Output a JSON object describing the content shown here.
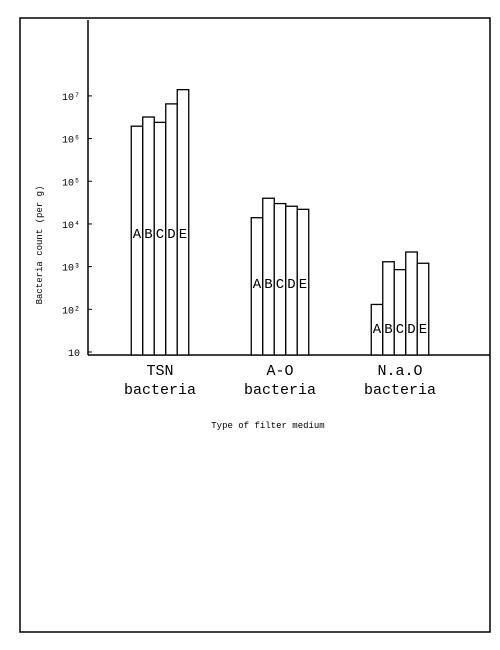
{
  "chart_data": {
    "type": "bar",
    "y_label": "Bacteria count (per g)",
    "x_label": "Type of filter medium",
    "categories": [
      "TSN bacteria",
      "A-O bacteria",
      "N.a.O bacteria"
    ],
    "series": [
      {
        "name": "A",
        "color": "#ffffff",
        "values": [
          1950000,
          14000,
          130
        ]
      },
      {
        "name": "B",
        "color": "#ffffff",
        "values": [
          3200000,
          40000,
          1300
        ]
      },
      {
        "name": "C",
        "color": "#ffffff",
        "values": [
          2400000,
          30000,
          850
        ]
      },
      {
        "name": "D",
        "color": "#ffffff",
        "values": [
          6500000,
          26000,
          2200
        ]
      },
      {
        "name": "E",
        "color": "#ffffff",
        "values": [
          14000000,
          22000,
          1200
        ]
      }
    ],
    "log_scale": true,
    "ylim": [
      10,
      600000000
    ],
    "yticks": [
      10,
      {
        "value": 100,
        "label": "10²"
      },
      {
        "value": 1000,
        "label": "10³"
      },
      {
        "value": 10000,
        "label": "10⁴"
      },
      {
        "value": 100000,
        "label": "10⁵"
      },
      {
        "value": 1000000,
        "label": "10⁶"
      },
      {
        "value": 10000000,
        "label": "10⁷"
      }
    ]
  }
}
